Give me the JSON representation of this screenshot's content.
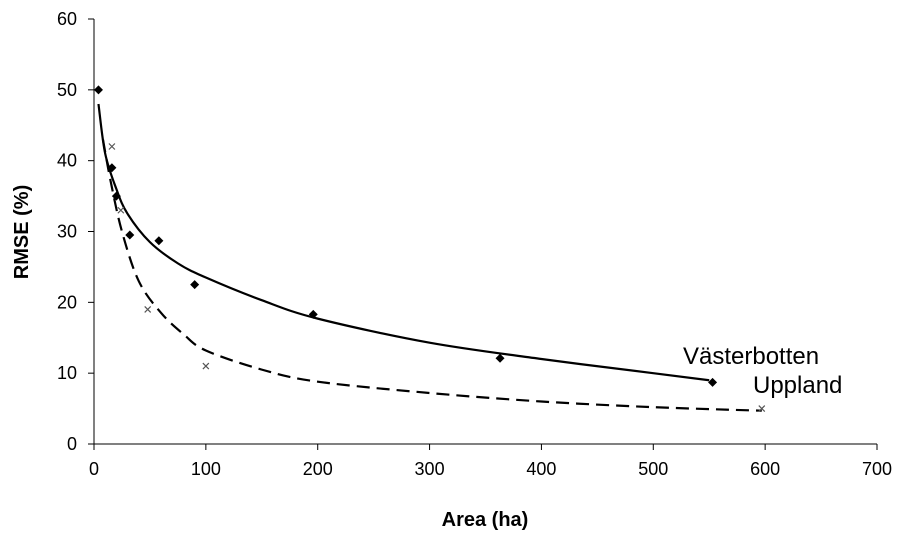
{
  "chart_data": {
    "type": "scatter",
    "title": "",
    "xlabel": "Area (ha)",
    "ylabel": "RMSE (%)",
    "xlim": [
      0,
      700
    ],
    "ylim": [
      0,
      60
    ],
    "x_ticks": [
      0,
      100,
      200,
      300,
      400,
      500,
      600,
      700
    ],
    "y_ticks": [
      0,
      10,
      20,
      30,
      40,
      50,
      60
    ],
    "grid": false,
    "legend": "none",
    "series": [
      {
        "name": "Västerbotten",
        "marker": "diamond",
        "line_style": "solid",
        "color": "#000000",
        "points": [
          {
            "x": 4,
            "y": 50
          },
          {
            "x": 16,
            "y": 39
          },
          {
            "x": 20,
            "y": 35
          },
          {
            "x": 32,
            "y": 29.5
          },
          {
            "x": 58,
            "y": 28.7
          },
          {
            "x": 90,
            "y": 22.5
          },
          {
            "x": 196,
            "y": 18.3
          },
          {
            "x": 363,
            "y": 12.1
          },
          {
            "x": 553,
            "y": 8.7
          }
        ],
        "trend": [
          {
            "x": 4,
            "y": 48
          },
          {
            "x": 10,
            "y": 41
          },
          {
            "x": 20,
            "y": 36
          },
          {
            "x": 30,
            "y": 32.5
          },
          {
            "x": 50,
            "y": 28.5
          },
          {
            "x": 75,
            "y": 25.5
          },
          {
            "x": 100,
            "y": 23.5
          },
          {
            "x": 150,
            "y": 20.3
          },
          {
            "x": 200,
            "y": 17.7
          },
          {
            "x": 300,
            "y": 14.3
          },
          {
            "x": 400,
            "y": 12
          },
          {
            "x": 500,
            "y": 10
          },
          {
            "x": 550,
            "y": 9
          }
        ]
      },
      {
        "name": "Uppland",
        "marker": "x",
        "line_style": "dashed",
        "color": "#000000",
        "points": [
          {
            "x": 16,
            "y": 42
          },
          {
            "x": 24,
            "y": 33
          },
          {
            "x": 48,
            "y": 19
          },
          {
            "x": 100,
            "y": 11
          },
          {
            "x": 597,
            "y": 5
          }
        ],
        "trend": [
          {
            "x": 8,
            "y": 43
          },
          {
            "x": 15,
            "y": 37
          },
          {
            "x": 25,
            "y": 30
          },
          {
            "x": 40,
            "y": 23
          },
          {
            "x": 60,
            "y": 18.5
          },
          {
            "x": 80,
            "y": 15.5
          },
          {
            "x": 100,
            "y": 13.2
          },
          {
            "x": 150,
            "y": 10.5
          },
          {
            "x": 200,
            "y": 8.8
          },
          {
            "x": 300,
            "y": 7.2
          },
          {
            "x": 400,
            "y": 6
          },
          {
            "x": 500,
            "y": 5.2
          },
          {
            "x": 597,
            "y": 4.7
          }
        ]
      }
    ],
    "annotations": [
      "Västerbotten",
      "Uppland"
    ]
  }
}
